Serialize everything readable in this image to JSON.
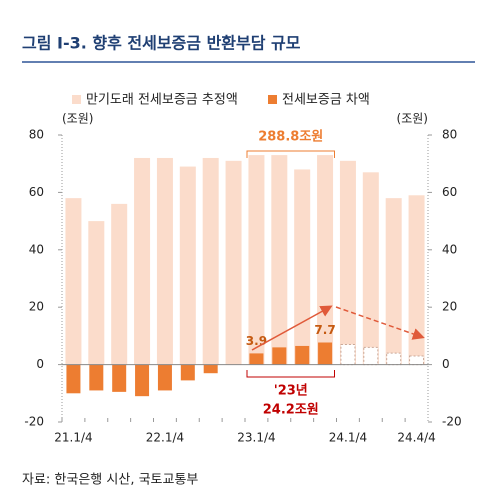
{
  "chart_data": {
    "type": "bar",
    "title": "그림 Ⅰ-3. 향후 전세보증금 반환부담 규모",
    "y_label": "(조원)",
    "y2_label": "(조원)",
    "categories": [
      "21.1/4",
      null,
      null,
      null,
      "22.1/4",
      null,
      null,
      null,
      "23.1/4",
      null,
      null,
      null,
      "24.1/4",
      null,
      null,
      "24.4/4"
    ],
    "series": [
      {
        "name": "만기도래 전세보증금 추정액",
        "color": "#fbdccb",
        "values": [
          58,
          50,
          56,
          72,
          72,
          69,
          72,
          71,
          73,
          73,
          68,
          73,
          71,
          67,
          58,
          59
        ]
      },
      {
        "name": "전세보증금 차액",
        "color": "#ed7d31",
        "values": [
          -10,
          -9,
          -9.5,
          -11,
          -9,
          -5.5,
          -3,
          null,
          3.9,
          6,
          6.5,
          7.7,
          7,
          6,
          4,
          3
        ],
        "value_labels": [
          null,
          null,
          null,
          null,
          null,
          null,
          null,
          null,
          "3.9",
          null,
          null,
          "7.7",
          null,
          null,
          null,
          null
        ],
        "dashed_from": 12
      }
    ],
    "ylim": [
      -20,
      80
    ],
    "yticks": [
      -20,
      0,
      20,
      40,
      60,
      80
    ],
    "y2lim": [
      -20,
      80
    ],
    "y2ticks": [
      -20,
      0,
      20,
      40,
      60,
      80
    ],
    "annotations": [
      "288.8조원",
      "'23년",
      "24.2조원"
    ],
    "source": "자료: 한국은행 시산, 국토교통부"
  }
}
